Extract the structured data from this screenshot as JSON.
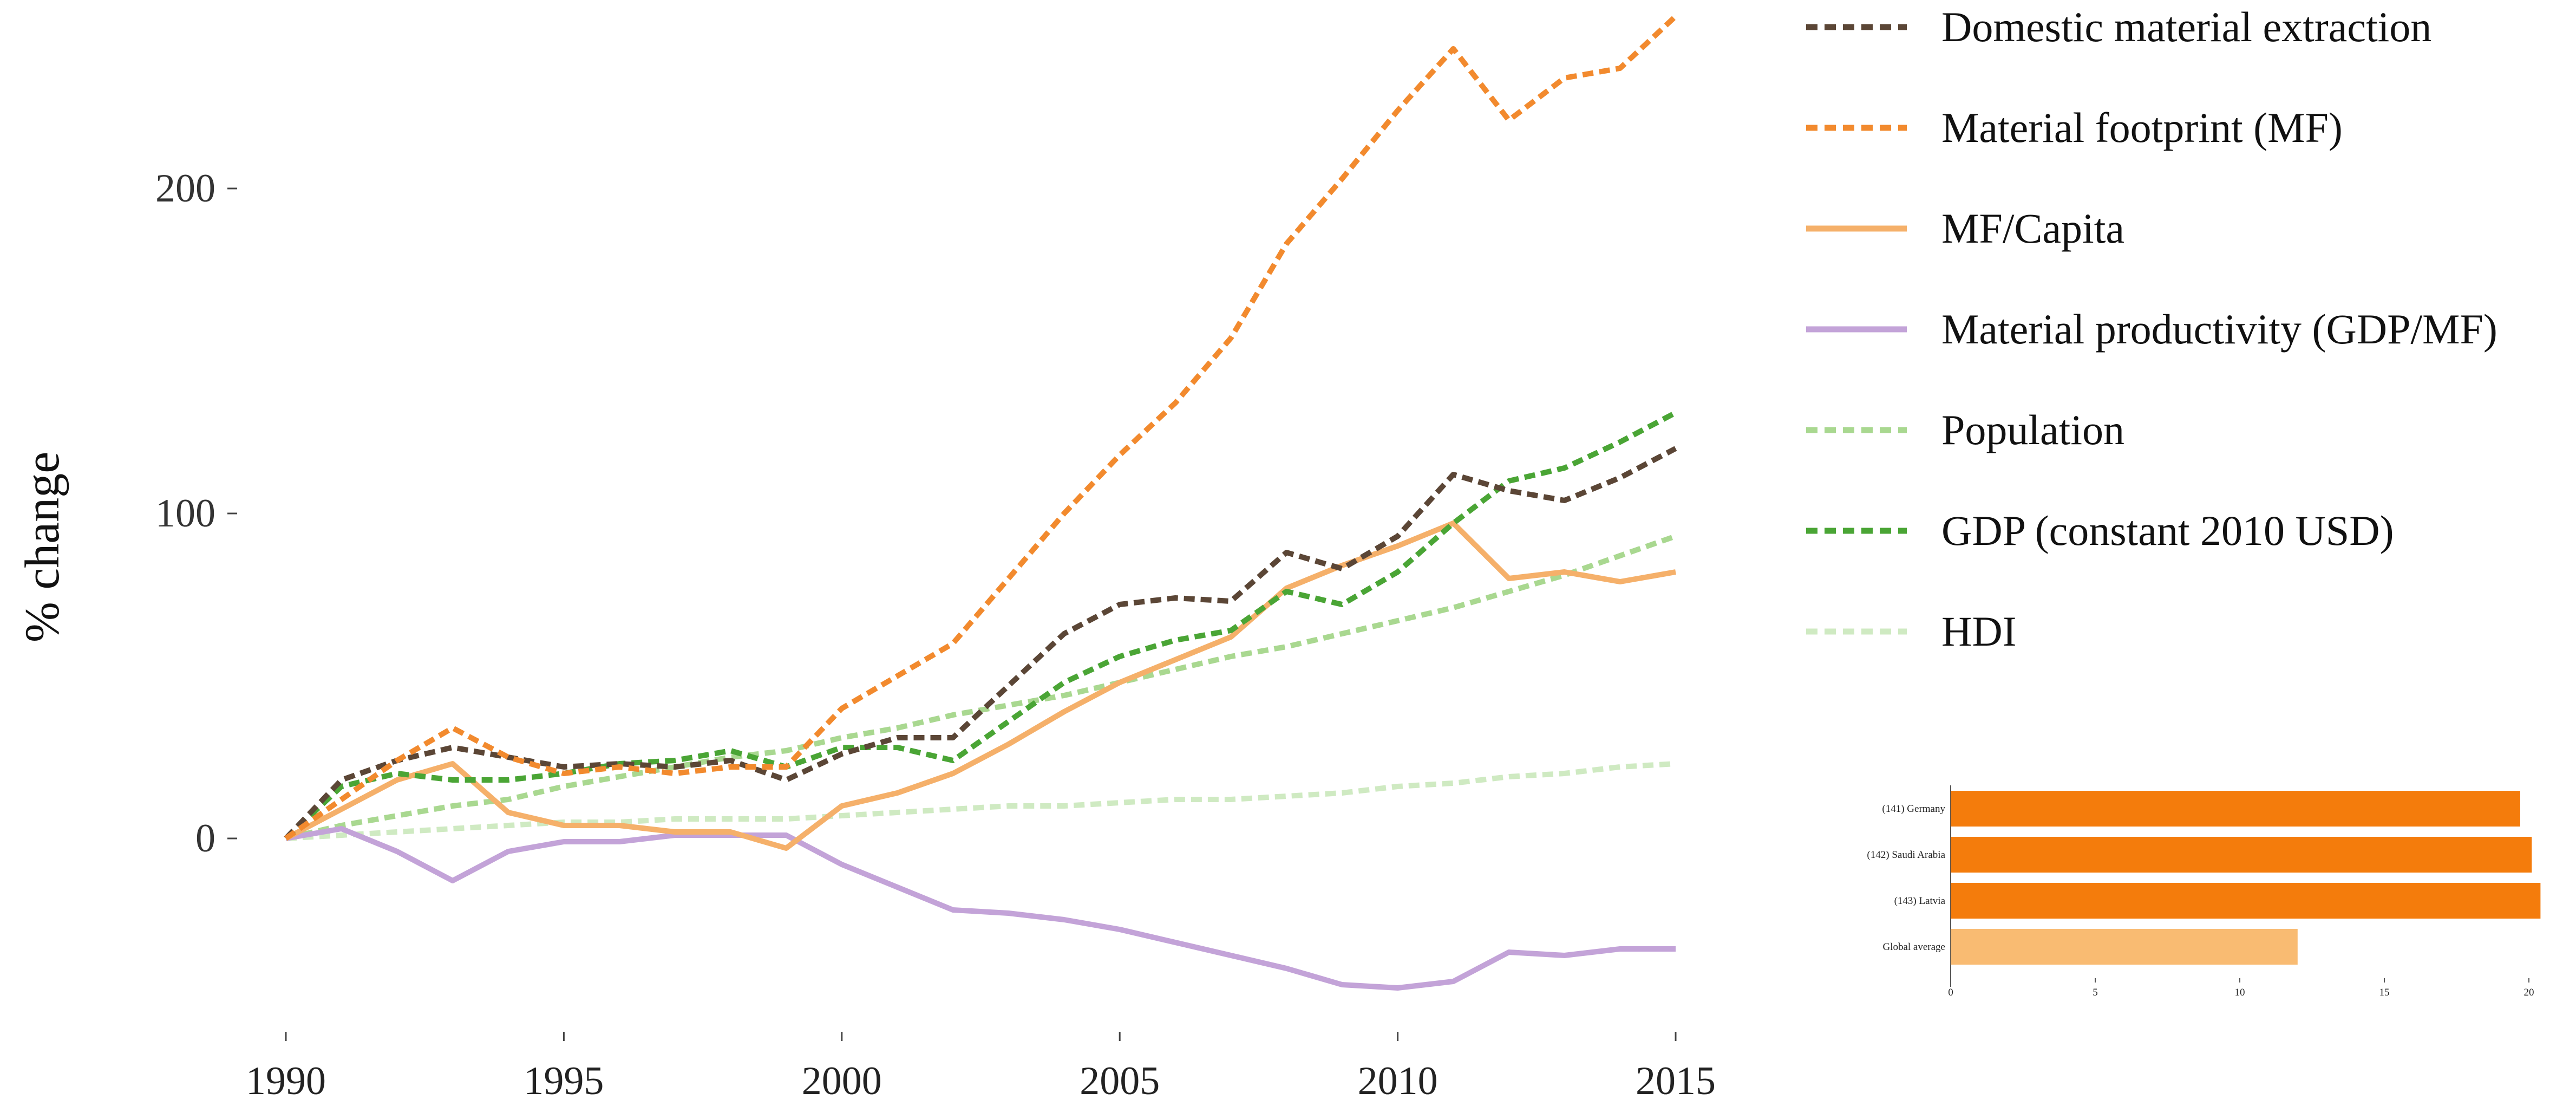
{
  "chart_data": [
    {
      "type": "line",
      "ylabel": "% change",
      "xlim": [
        1990,
        2015
      ],
      "ylim": [
        -60,
        250
      ],
      "x_ticks": [
        1990,
        1995,
        2000,
        2005,
        2010,
        2015
      ],
      "y_ticks": [
        0,
        100,
        200
      ],
      "grid": false,
      "legend_position": "right",
      "x": [
        1990,
        1991,
        1992,
        1993,
        1994,
        1995,
        1996,
        1997,
        1998,
        1999,
        2000,
        2001,
        2002,
        2003,
        2004,
        2005,
        2006,
        2007,
        2008,
        2009,
        2010,
        2011,
        2012,
        2013,
        2014,
        2015
      ],
      "series": [
        {
          "name": "Domestic material extraction",
          "color": "#5b4636",
          "dash": "dotted",
          "values": [
            0,
            18,
            24,
            28,
            25,
            22,
            23,
            22,
            24,
            18,
            26,
            31,
            31,
            47,
            63,
            72,
            74,
            73,
            88,
            83,
            93,
            112,
            107,
            104,
            111,
            120
          ]
        },
        {
          "name": "Material footprint (MF)",
          "color": "#f28a2e",
          "dash": "dotted",
          "values": [
            0,
            12,
            24,
            34,
            25,
            20,
            22,
            20,
            22,
            22,
            40,
            50,
            60,
            80,
            100,
            118,
            134,
            154,
            183,
            203,
            224,
            243,
            221,
            234,
            237,
            253
          ]
        },
        {
          "name": "MF/Capita",
          "color": "#f5b06a",
          "dash": "solid",
          "values": [
            0,
            9,
            18,
            23,
            8,
            4,
            4,
            2,
            2,
            -3,
            10,
            14,
            20,
            29,
            39,
            48,
            55,
            62,
            77,
            84,
            90,
            97,
            80,
            82,
            79,
            82
          ]
        },
        {
          "name": "Material productivity (GDP/MF)",
          "color": "#c3a3d8",
          "dash": "solid",
          "values": [
            0,
            3,
            -4,
            -13,
            -4,
            -1,
            -1,
            1,
            1,
            1,
            -8,
            -15,
            -22,
            -23,
            -25,
            -28,
            -32,
            -36,
            -40,
            -45,
            -46,
            -44,
            -35,
            -36,
            -34,
            -34
          ]
        },
        {
          "name": "Population",
          "color": "#a9d890",
          "dash": "dotted",
          "values": [
            0,
            4,
            7,
            10,
            12,
            16,
            19,
            22,
            25,
            27,
            31,
            34,
            38,
            41,
            44,
            48,
            52,
            56,
            59,
            63,
            67,
            71,
            76,
            81,
            87,
            93
          ]
        },
        {
          "name": "GDP (constant 2010 USD)",
          "color": "#4aa535",
          "dash": "dotted",
          "values": [
            0,
            16,
            20,
            18,
            18,
            20,
            23,
            24,
            27,
            22,
            28,
            28,
            24,
            36,
            48,
            56,
            61,
            64,
            76,
            72,
            82,
            97,
            110,
            114,
            122,
            131
          ]
        },
        {
          "name": "HDI",
          "color": "#cfeac2",
          "dash": "dotted",
          "values": [
            0,
            1,
            2,
            3,
            4,
            5,
            5,
            6,
            6,
            6,
            7,
            8,
            9,
            10,
            10,
            11,
            12,
            12,
            13,
            14,
            16,
            17,
            19,
            20,
            22,
            23
          ]
        }
      ]
    },
    {
      "type": "bar",
      "orientation": "horizontal",
      "categories": [
        "(141) Germany",
        "(142) Saudi Arabia",
        "(143) Latvia",
        "Global average"
      ],
      "values": [
        19.7,
        20.1,
        20.4,
        12.0
      ],
      "colors": [
        "#f47c0c",
        "#f47c0c",
        "#f47c0c",
        "#f9bb72"
      ],
      "xlim": [
        0,
        20.5
      ],
      "x_ticks": [
        0,
        5,
        10,
        15,
        20
      ],
      "grid": false
    }
  ]
}
